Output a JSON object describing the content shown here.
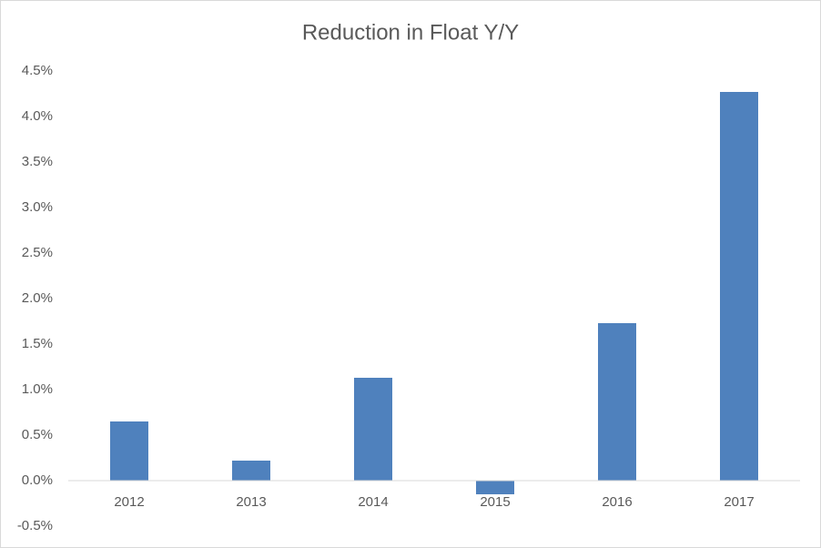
{
  "chart_data": {
    "type": "bar",
    "title": "Reduction in Float Y/Y",
    "categories": [
      "2012",
      "2013",
      "2014",
      "2015",
      "2016",
      "2017"
    ],
    "values": [
      0.65,
      0.22,
      1.13,
      -0.15,
      1.73,
      4.27
    ],
    "color": "#4f81bd",
    "ylim": [
      -0.5,
      4.5
    ],
    "yticks": [
      {
        "value": -0.5,
        "label": "-0.5%"
      },
      {
        "value": 0,
        "label": "0.0%"
      },
      {
        "value": 0.5,
        "label": "0.5%"
      },
      {
        "value": 1,
        "label": "1.0%"
      },
      {
        "value": 1.5,
        "label": "1.5%"
      },
      {
        "value": 2,
        "label": "2.0%"
      },
      {
        "value": 2.5,
        "label": "2.5%"
      },
      {
        "value": 3,
        "label": "3.0%"
      },
      {
        "value": 3.5,
        "label": "3.5%"
      },
      {
        "value": 4,
        "label": "4.0%"
      },
      {
        "value": 4.5,
        "label": "4.5%"
      }
    ],
    "grid": false
  }
}
